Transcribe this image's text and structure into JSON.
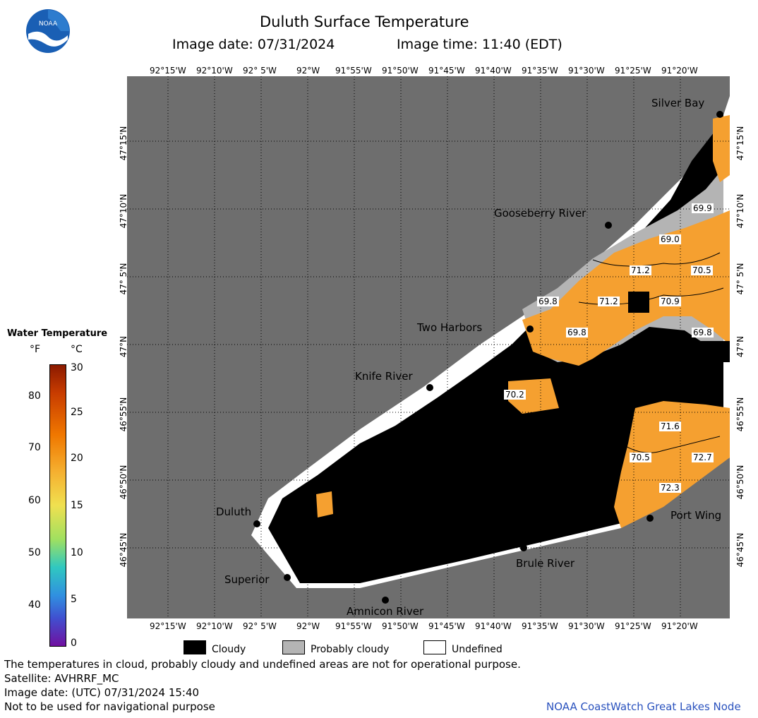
{
  "header": {
    "title": "Duluth Surface Temperature",
    "image_date": "Image date: 07/31/2024",
    "image_time": "Image time: 11:40 (EDT)"
  },
  "logo": {
    "text": "NOAA",
    "icon": "noaa-logo-icon"
  },
  "axes": {
    "longitudes": [
      "92°15'W",
      "92°10'W",
      "92° 5'W",
      "92°W",
      "91°55'W",
      "91°50'W",
      "91°45'W",
      "91°40'W",
      "91°35'W",
      "91°30'W",
      "91°25'W",
      "91°20'W"
    ],
    "latitudes": [
      "47°15'N",
      "47°10'N",
      "47° 5'N",
      "47°N",
      "46°55'N",
      "46°50'N",
      "46°45'N"
    ]
  },
  "places": [
    {
      "name": "Silver Bay"
    },
    {
      "name": "Gooseberry River"
    },
    {
      "name": "Two Harbors"
    },
    {
      "name": "Knife River"
    },
    {
      "name": "Duluth"
    },
    {
      "name": "Superior"
    },
    {
      "name": "Amnicon River"
    },
    {
      "name": "Brule River"
    },
    {
      "name": "Port Wing"
    }
  ],
  "temperatures": [
    "69.9",
    "69.0",
    "71.2",
    "70.5",
    "69.8",
    "71.2",
    "70.9",
    "69.8",
    "69.8",
    "70.2",
    "71.6",
    "70.5",
    "72.7",
    "72.3"
  ],
  "legend": {
    "title": "Water Temperature",
    "unit_f": "°F",
    "unit_c": "°C",
    "f_ticks": [
      "80",
      "70",
      "60",
      "50",
      "40"
    ],
    "c_ticks": [
      "30",
      "25",
      "20",
      "15",
      "10",
      "5",
      "0"
    ],
    "cloudy": "Cloudy",
    "probably_cloudy": "Probably cloudy",
    "undefined": "Undefined"
  },
  "footer": {
    "line1": "The temperatures in cloud, probably cloudy and undefined areas are not for operational purpose.",
    "line2": "Satellite: AVHRRF_MC",
    "line3": "Image date: (UTC) 07/31/2024  15:40",
    "line4": "Not to be used for navigational purpose",
    "credit": "NOAA CoastWatch Great Lakes Node"
  },
  "colors": {
    "land": "#6e6e6e",
    "cloud": "#000000",
    "probably_cloudy": "#b4b4b4",
    "undefined": "#ffffff",
    "warm_water": "#f5a030"
  }
}
